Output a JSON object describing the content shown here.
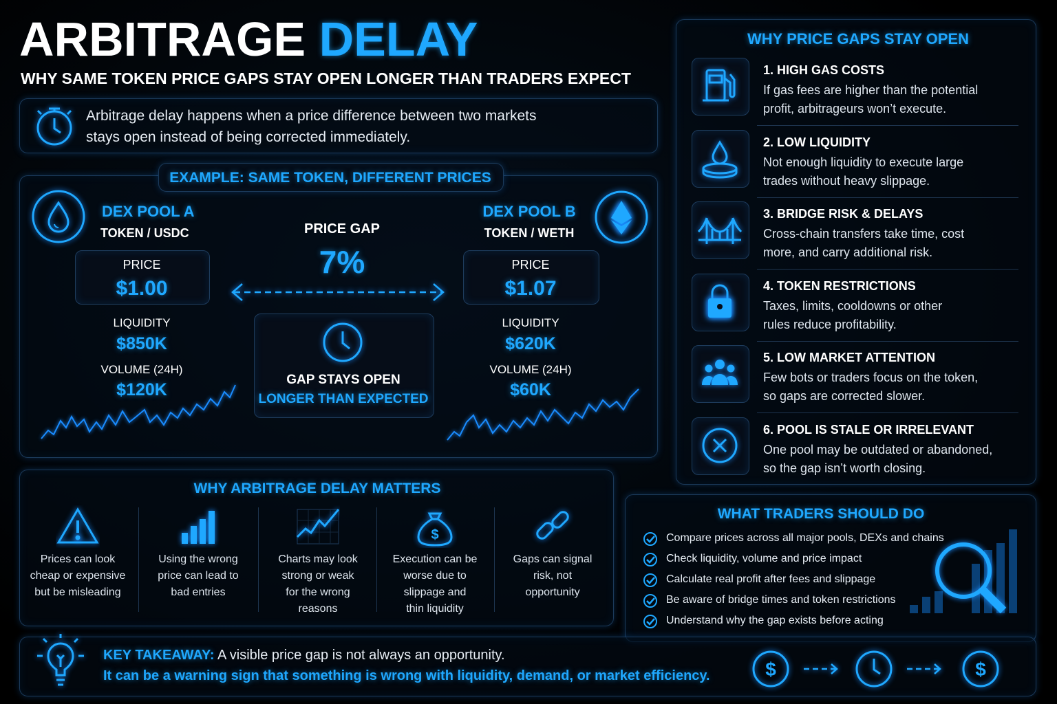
{
  "header": {
    "title_a": "ARBITRAGE",
    "title_b": "DELAY",
    "subtitle": "WHY SAME TOKEN PRICE GAPS STAY OPEN LONGER THAN TRADERS EXPECT"
  },
  "intro": {
    "lines": [
      "Arbitrage delay happens when a price difference between two markets",
      "stays open instead of being corrected immediately."
    ]
  },
  "example": {
    "title": "EXAMPLE: SAME TOKEN, DIFFERENT PRICES",
    "pools": [
      {
        "name": "DEX POOL A",
        "pair": "TOKEN / USDC",
        "price_label": "PRICE",
        "price": "$1.00",
        "liquidity_label": "LIQUIDITY",
        "liquidity": "$850K",
        "volume_label": "VOLUME (24H)",
        "volume": "$120K"
      },
      {
        "name": "DEX POOL B",
        "pair": "TOKEN / WETH",
        "price_label": "PRICE",
        "price": "$1.07",
        "liquidity_label": "LIQUIDITY",
        "liquidity": "$620K",
        "volume_label": "VOLUME (24H)",
        "volume": "$60K"
      }
    ],
    "gap_label": "PRICE GAP",
    "gap": "7%",
    "note_1": "GAP STAYS OPEN",
    "note_2": "LONGER THAN EXPECTED"
  },
  "reasons": {
    "title": "WHY PRICE GAPS STAY OPEN",
    "items": [
      {
        "title": "1. HIGH GAS COSTS",
        "lines": [
          "If gas fees are higher than the potential",
          "profit, arbitrageurs won’t execute."
        ]
      },
      {
        "title": "2. LOW LIQUIDITY",
        "lines": [
          "Not enough liquidity to execute large",
          "trades without heavy slippage."
        ]
      },
      {
        "title": "3. BRIDGE RISK & DELAYS",
        "lines": [
          "Cross-chain transfers take time, cost",
          "more, and carry additional risk."
        ]
      },
      {
        "title": "4. TOKEN RESTRICTIONS",
        "lines": [
          "Taxes, limits, cooldowns or other",
          "rules reduce profitability."
        ]
      },
      {
        "title": "5. LOW MARKET ATTENTION",
        "lines": [
          "Few bots or traders focus on the token,",
          "so gaps are corrected slower."
        ]
      },
      {
        "title": "6. POOL IS STALE OR IRRELEVANT",
        "lines": [
          "One pool may be outdated or abandoned,",
          "so the gap isn’t worth closing."
        ]
      }
    ]
  },
  "matters": {
    "title": "WHY ARBITRAGE DELAY MATTERS",
    "items": [
      {
        "lines": [
          "Prices can look",
          "cheap or expensive",
          "but be misleading"
        ]
      },
      {
        "lines": [
          "Using the wrong",
          "price can lead to",
          "bad entries"
        ]
      },
      {
        "lines": [
          "Charts may look",
          "strong or weak",
          "for the wrong",
          "reasons"
        ]
      },
      {
        "lines": [
          "Execution can be",
          "worse due to",
          "slippage and",
          "thin liquidity"
        ]
      },
      {
        "lines": [
          "Gaps can signal",
          "risk, not",
          "opportunity"
        ]
      }
    ]
  },
  "actions": {
    "title": "WHAT TRADERS SHOULD DO",
    "items": [
      "Compare prices across all major pools, DEXs and chains",
      "Check liquidity, volume and price impact",
      "Calculate real profit after fees and slippage",
      "Be aware of bridge times and token restrictions",
      "Understand why the gap exists before acting"
    ]
  },
  "takeaway": {
    "label": "KEY TAKEAWAY:",
    "line1": "A visible price gap is not always an opportunity.",
    "line2": "It can be a warning sign that something is wrong with liquidity, demand, or market efficiency."
  }
}
